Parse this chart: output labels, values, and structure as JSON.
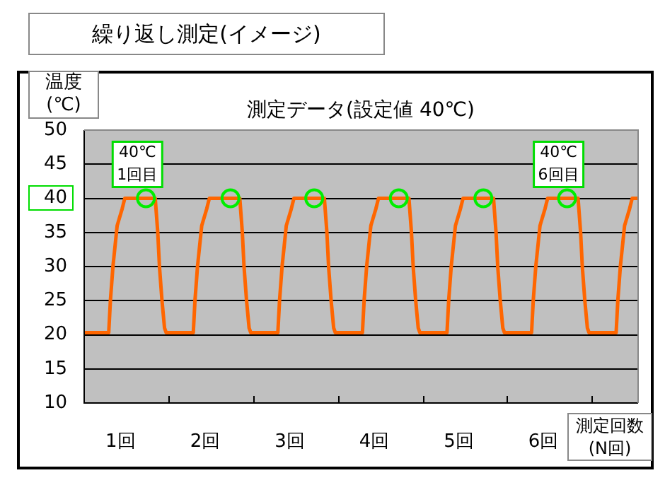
{
  "chart_data": {
    "type": "line",
    "title": "繰り返し測定(イメージ)",
    "subtitle": "測定データ(設定値 40℃)",
    "xlabel": "測定回数\n(N回)",
    "ylabel": "温度\n(℃)",
    "xlim": [
      0.57,
      7.12
    ],
    "xticks": [
      {
        "value": 1,
        "label": "1回"
      },
      {
        "value": 1.57,
        "label": null
      },
      {
        "value": 2,
        "label": "2回"
      },
      {
        "value": 2.57,
        "label": null
      },
      {
        "value": 3,
        "label": "3回"
      },
      {
        "value": 3.57,
        "label": null
      },
      {
        "value": 4,
        "label": "4回"
      },
      {
        "value": 4.57,
        "label": null
      },
      {
        "value": 5,
        "label": "5回"
      },
      {
        "value": 5.57,
        "label": null
      },
      {
        "value": 6,
        "label": "6回"
      },
      {
        "value": 6.57,
        "label": null
      }
    ],
    "ylim": [
      10,
      50
    ],
    "yticks": [
      10,
      15,
      20,
      25,
      30,
      35,
      40,
      45,
      50
    ],
    "grid": "y",
    "series": [
      {
        "type": "line",
        "color": "#ff6600",
        "marker": "none",
        "x": [
          0.57,
          0.86,
          0.88,
          0.91,
          0.96,
          1.02,
          1.05,
          1.41,
          1.44,
          1.46,
          1.49,
          1.52,
          1.54,
          1.86,
          1.88,
          1.91,
          1.96,
          2.02,
          2.05,
          2.41,
          2.44,
          2.46,
          2.49,
          2.52,
          2.54,
          2.86,
          2.88,
          2.91,
          2.96,
          3.02,
          3.05,
          3.41,
          3.44,
          3.46,
          3.49,
          3.52,
          3.54,
          3.86,
          3.88,
          3.91,
          3.96,
          4.02,
          4.05,
          4.41,
          4.44,
          4.46,
          4.49,
          4.52,
          4.54,
          4.86,
          4.88,
          4.91,
          4.96,
          5.02,
          5.05,
          5.41,
          5.44,
          5.46,
          5.49,
          5.52,
          5.54,
          5.86,
          5.88,
          5.91,
          5.96,
          6.02,
          6.05,
          6.41,
          6.44,
          6.46,
          6.49,
          6.52,
          6.54,
          6.86,
          6.88,
          6.91,
          6.96,
          7.02,
          7.05,
          7.12
        ],
        "values": [
          20.3,
          20.3,
          25,
          30,
          36,
          38.5,
          40,
          40,
          35,
          30,
          25,
          21,
          20.3,
          20.3,
          25,
          30,
          36,
          38.5,
          40,
          40,
          35,
          30,
          25,
          21,
          20.3,
          20.3,
          25,
          30,
          36,
          38.5,
          40,
          40,
          35,
          30,
          25,
          21,
          20.3,
          20.3,
          25,
          30,
          36,
          38.5,
          40,
          40,
          35,
          30,
          25,
          21,
          20.3,
          20.3,
          25,
          30,
          36,
          38.5,
          40,
          40,
          35,
          30,
          25,
          21,
          20.3,
          20.3,
          25,
          30,
          36,
          38.5,
          40,
          40,
          35,
          30,
          25,
          21,
          20.3,
          20.3,
          25,
          30,
          36,
          38.5,
          40,
          40
        ]
      },
      {
        "type": "scatter",
        "color": "#00ee00",
        "marker": "circle",
        "x": [
          1.3,
          2.3,
          3.29,
          4.29,
          5.29,
          6.28
        ],
        "values": [
          40,
          40,
          40,
          40,
          40,
          40
        ]
      }
    ],
    "annotations": [
      {
        "text": "40℃\n1回目",
        "x": 1.3,
        "y": 40
      },
      {
        "text": "40℃\n6回目",
        "x": 6.28,
        "y": 40
      }
    ]
  }
}
